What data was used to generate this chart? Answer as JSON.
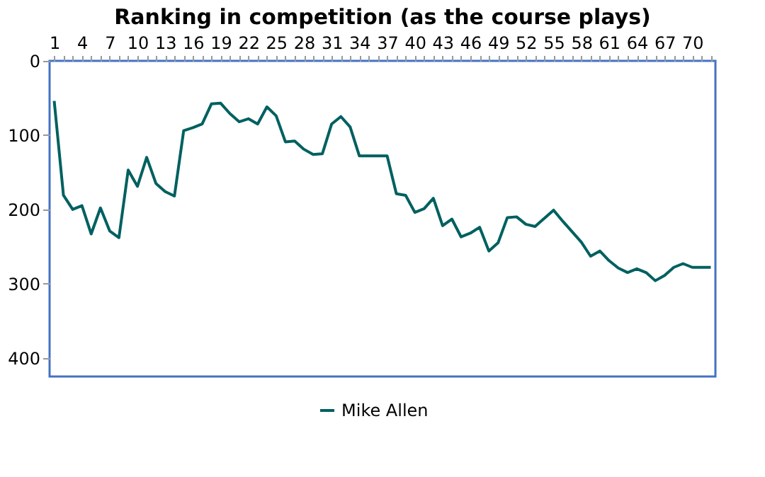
{
  "chart_data": {
    "type": "line",
    "title": "Ranking in competition (as the course plays)",
    "categories": [
      "1",
      null,
      null,
      "4",
      null,
      null,
      "7",
      null,
      null,
      "10",
      null,
      null,
      "13",
      null,
      null,
      "16",
      null,
      null,
      "19",
      null,
      null,
      "22",
      null,
      null,
      "25",
      null,
      null,
      "28",
      null,
      null,
      "31",
      null,
      null,
      "34",
      null,
      null,
      "37",
      null,
      null,
      "40",
      null,
      null,
      "43",
      null,
      null,
      "46",
      null,
      null,
      "49",
      null,
      null,
      "52",
      null,
      null,
      "55",
      null,
      null,
      "58",
      null,
      null,
      "61",
      null,
      null,
      "64",
      null,
      null,
      "67",
      null,
      null,
      "70",
      null,
      null
    ],
    "series": [
      {
        "name": "Mike Allen",
        "color": "#006060",
        "values": [
          54,
          181,
          200,
          195,
          233,
          198,
          229,
          238,
          147,
          169,
          130,
          165,
          176,
          182,
          94,
          90,
          85,
          58,
          57,
          71,
          82,
          78,
          85,
          62,
          74,
          109,
          108,
          119,
          126,
          125,
          85,
          75,
          89,
          128,
          128,
          128,
          128,
          179,
          181,
          204,
          199,
          185,
          222,
          213,
          237,
          232,
          224,
          256,
          245,
          211,
          210,
          220,
          223,
          212,
          201,
          216,
          230,
          244,
          263,
          256,
          269,
          279,
          285,
          280,
          285,
          296,
          289,
          278,
          273,
          278,
          278,
          278
        ]
      }
    ],
    "ylim": [
      425,
      0
    ],
    "yticks": [
      0,
      100,
      200,
      300,
      400
    ],
    "grid": false,
    "legend": "bottom",
    "marker": "none",
    "line_style": "solid"
  }
}
